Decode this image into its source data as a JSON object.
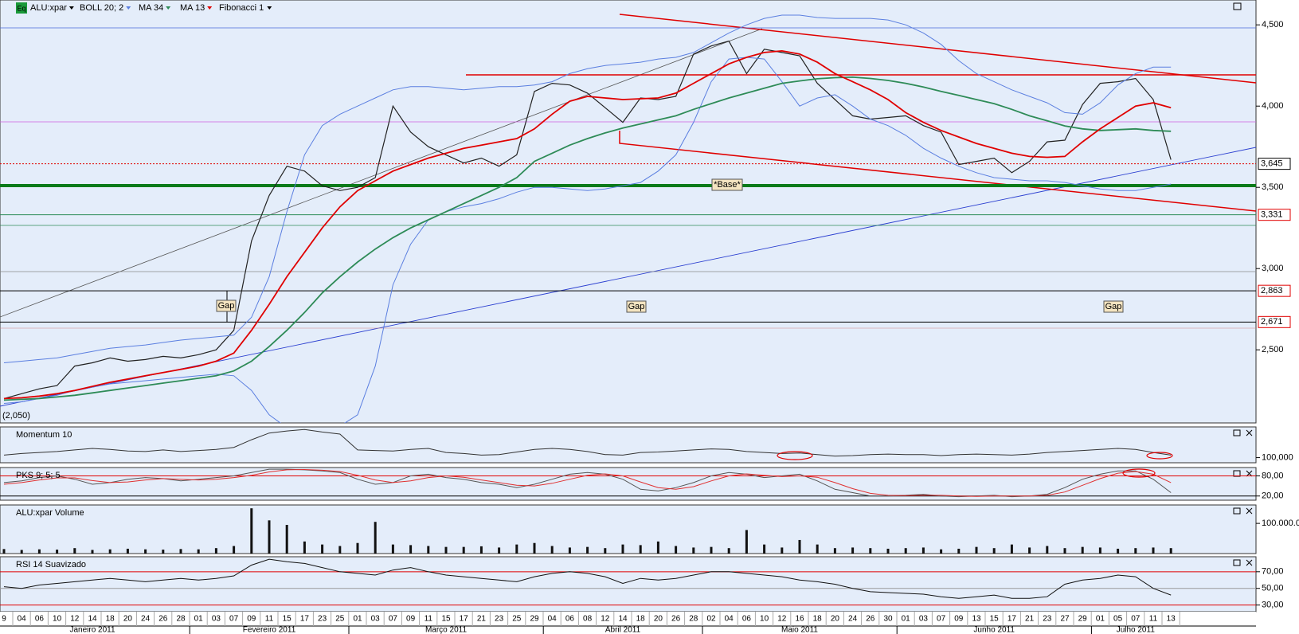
{
  "chart_data": [
    {
      "type": "line",
      "icon": "Eq",
      "categories": [
        "9",
        "04",
        "06",
        "10",
        "12",
        "14",
        "18",
        "20",
        "24",
        "26",
        "28",
        "01",
        "03",
        "07",
        "09",
        "11",
        "15",
        "17",
        "23",
        "25",
        "01",
        "03",
        "07",
        "09",
        "11",
        "15",
        "17",
        "21",
        "23",
        "25",
        "29",
        "04",
        "06",
        "08",
        "12",
        "14",
        "18",
        "20",
        "26",
        "28",
        "02",
        "04",
        "06",
        "10",
        "12",
        "16",
        "18",
        "20",
        "24",
        "26",
        "30",
        "01",
        "03",
        "07",
        "09",
        "13",
        "15",
        "17",
        "21",
        "23",
        "27",
        "29",
        "01",
        "05",
        "07",
        "11",
        "13"
      ],
      "months": [
        "Janeiro 2011",
        "Fevereiro 2011",
        "Março 2011",
        "Abril 2011",
        "Maio 2011",
        "Junho 2011",
        "Julho 2011"
      ],
      "series": [
        {
          "name": "ALU:xpar",
          "color": "#222222",
          "values": [
            2200,
            2230,
            2260,
            2280,
            2400,
            2420,
            2450,
            2430,
            2440,
            2460,
            2450,
            2470,
            2500,
            2620,
            3170,
            3450,
            3630,
            3600,
            3510,
            3480,
            3500,
            3560,
            4000,
            3840,
            3750,
            3700,
            3650,
            3680,
            3630,
            3700,
            4090,
            4140,
            4130,
            4080,
            3990,
            3900,
            4050,
            4040,
            4060,
            4320,
            4370,
            4400,
            4200,
            4350,
            4330,
            4310,
            4140,
            4040,
            3940,
            3920,
            3930,
            3940,
            3880,
            3840,
            3640,
            3660,
            3680,
            3590,
            3660,
            3780,
            3790,
            4010,
            4140,
            4150,
            4170,
            4040,
            3670
          ]
        },
        {
          "name": "BOLL 20; 2",
          "color": "#5b7fe0",
          "values": [
            2420,
            2430,
            2440,
            2450,
            2470,
            2490,
            2510,
            2520,
            2530,
            2545,
            2560,
            2570,
            2580,
            2590,
            2700,
            2950,
            3350,
            3700,
            3880,
            3950,
            4000,
            4050,
            4100,
            4120,
            4120,
            4110,
            4100,
            4110,
            4120,
            4120,
            4130,
            4150,
            4200,
            4230,
            4250,
            4260,
            4270,
            4290,
            4300,
            4330,
            4390,
            4450,
            4500,
            4540,
            4560,
            4560,
            4545,
            4540,
            4540,
            4540,
            4530,
            4500,
            4450,
            4380,
            4280,
            4200,
            4150,
            4100,
            4060,
            4020,
            3960,
            3950,
            4020,
            4130,
            4200,
            4240,
            4240
          ],
          "lower": [
            2170,
            2180,
            2200,
            2220,
            2250,
            2270,
            2290,
            2300,
            2310,
            2320,
            2330,
            2340,
            2350,
            2340,
            2250,
            2100,
            2020,
            1980,
            2000,
            2030,
            2100,
            2400,
            2900,
            3150,
            3300,
            3350,
            3380,
            3400,
            3430,
            3470,
            3500,
            3500,
            3490,
            3480,
            3490,
            3510,
            3530,
            3600,
            3700,
            3900,
            4150,
            4290,
            4300,
            4290,
            4150,
            4000,
            4050,
            4070,
            4000,
            3920,
            3880,
            3820,
            3740,
            3680,
            3630,
            3590,
            3560,
            3550,
            3540,
            3540,
            3530,
            3510,
            3490,
            3480,
            3480,
            3500,
            3520
          ]
        },
        {
          "name": "MA 34",
          "color": "#2e8b57",
          "values": [
            2190,
            2195,
            2200,
            2210,
            2220,
            2235,
            2250,
            2265,
            2280,
            2295,
            2310,
            2325,
            2340,
            2370,
            2430,
            2520,
            2620,
            2730,
            2850,
            2950,
            3040,
            3120,
            3190,
            3250,
            3300,
            3350,
            3400,
            3450,
            3500,
            3560,
            3660,
            3710,
            3760,
            3800,
            3835,
            3865,
            3890,
            3915,
            3940,
            3980,
            4015,
            4050,
            4080,
            4110,
            4140,
            4155,
            4168,
            4175,
            4178,
            4170,
            4158,
            4140,
            4117,
            4090,
            4066,
            4040,
            4015,
            3980,
            3940,
            3910,
            3878,
            3860,
            3850,
            3855,
            3860,
            3850,
            3845
          ]
        },
        {
          "name": "MA 13",
          "color": "#e00000",
          "values": [
            2200,
            2205,
            2215,
            2230,
            2250,
            2275,
            2300,
            2320,
            2340,
            2360,
            2380,
            2400,
            2430,
            2480,
            2620,
            2780,
            2950,
            3100,
            3250,
            3380,
            3480,
            3540,
            3600,
            3640,
            3680,
            3710,
            3740,
            3760,
            3780,
            3800,
            3860,
            3950,
            4030,
            4060,
            4050,
            4040,
            4045,
            4050,
            4080,
            4140,
            4200,
            4260,
            4300,
            4330,
            4340,
            4320,
            4270,
            4200,
            4150,
            4100,
            4040,
            3960,
            3900,
            3850,
            3810,
            3770,
            3740,
            3710,
            3690,
            3685,
            3690,
            3780,
            3860,
            3930,
            4000,
            4020,
            3990
          ]
        }
      ],
      "levels_name": "Fibonacci 1",
      "levels": [
        {
          "value": 3645,
          "label": "3,645",
          "color": "#e00000"
        },
        {
          "value": 3331,
          "label": "3,331",
          "color": "#2e8b57"
        },
        {
          "value": 2863,
          "label": "2,863",
          "color": "#000000"
        },
        {
          "value": 2671,
          "label": "2,671",
          "color": "#000000"
        }
      ],
      "low_label": "(2,050)",
      "annotations": [
        "Gap",
        "Gap",
        "Gap",
        "*Base*"
      ],
      "ylim": [
        2050,
        4653
      ],
      "yticks": [
        {
          "value": 2500,
          "label": "2,500"
        },
        {
          "value": 3000,
          "label": "3,000"
        },
        {
          "value": 3500,
          "label": "3,500"
        },
        {
          "value": 4000,
          "label": "4,000"
        },
        {
          "value": 4500,
          "label": "4,500"
        }
      ],
      "grid": false
    },
    {
      "type": "line",
      "title": "Momentum 10",
      "series": [
        {
          "color": "#333333",
          "values": [
            100.5,
            100.8,
            101,
            101.2,
            101.5,
            101.8,
            101.6,
            101.3,
            101.2,
            101.5,
            101.2,
            101.4,
            101.6,
            102,
            103.5,
            104.8,
            105.2,
            105.5,
            105,
            104.6,
            101.5,
            101.4,
            101.3,
            101.6,
            101.8,
            101,
            100.8,
            100.5,
            100.6,
            101.1,
            101.6,
            101.8,
            101.6,
            101.2,
            100.6,
            100.5,
            101,
            101.1,
            101.3,
            101.5,
            101.7,
            101.6,
            101.2,
            101,
            100.8,
            100.9,
            100.6,
            100.3,
            100.4,
            100.6,
            100.7,
            100.6,
            100.6,
            100.4,
            100.6,
            100.7,
            100.6,
            100.5,
            100.7,
            101,
            101.2,
            101.4,
            101.6,
            101.8,
            101.6,
            101,
            100.5
          ]
        }
      ],
      "ylim": [
        99,
        106
      ],
      "yticks": [
        {
          "value": 100,
          "label": "100,000"
        }
      ],
      "grid": false
    },
    {
      "type": "line",
      "title": "PKS 9; 5; 5",
      "series": [
        {
          "color": "#555555",
          "values": [
            60,
            65,
            75,
            80,
            70,
            55,
            60,
            70,
            75,
            72,
            65,
            70,
            75,
            80,
            90,
            100,
            100,
            98,
            95,
            90,
            70,
            55,
            60,
            80,
            85,
            75,
            70,
            60,
            55,
            45,
            55,
            70,
            85,
            90,
            85,
            70,
            40,
            35,
            45,
            60,
            80,
            90,
            85,
            75,
            80,
            85,
            65,
            40,
            30,
            20,
            20,
            22,
            25,
            20,
            18,
            20,
            22,
            18,
            20,
            25,
            45,
            70,
            85,
            95,
            95,
            70,
            30
          ]
        },
        {
          "color": "#e03030",
          "values": [
            55,
            60,
            68,
            74,
            74,
            66,
            60,
            62,
            68,
            72,
            70,
            68,
            70,
            75,
            82,
            92,
            98,
            99,
            97,
            93,
            82,
            68,
            60,
            65,
            75,
            80,
            76,
            68,
            60,
            52,
            50,
            58,
            70,
            82,
            86,
            80,
            62,
            45,
            40,
            48,
            65,
            80,
            86,
            82,
            78,
            80,
            76,
            60,
            42,
            28,
            22,
            21,
            22,
            22,
            20,
            19,
            20,
            20,
            20,
            22,
            32,
            52,
            72,
            88,
            93,
            85,
            60
          ]
        }
      ],
      "ylim": [
        7.5,
        105
      ],
      "yticks": [
        {
          "value": 80,
          "label": "80,00"
        },
        {
          "value": 20,
          "label": "20,00"
        }
      ],
      "grid": true,
      "grid_colors": [
        "#e00000",
        "#000000"
      ]
    },
    {
      "type": "bar",
      "title": "ALU:xpar Volume",
      "series": [
        {
          "color": "#111111",
          "values": [
            15000000,
            12000000,
            14000000,
            13000000,
            18000000,
            12000000,
            14000000,
            16000000,
            14000000,
            13000000,
            15000000,
            14000000,
            18000000,
            25000000,
            150000000,
            110000000,
            95000000,
            40000000,
            30000000,
            25000000,
            35000000,
            105000000,
            30000000,
            28000000,
            25000000,
            22000000,
            22000000,
            24000000,
            20000000,
            30000000,
            35000000,
            25000000,
            20000000,
            22000000,
            18000000,
            30000000,
            28000000,
            40000000,
            25000000,
            20000000,
            22000000,
            18000000,
            78000000,
            30000000,
            20000000,
            45000000,
            30000000,
            18000000,
            20000000,
            18000000,
            16000000,
            18000000,
            20000000,
            14000000,
            16000000,
            22000000,
            18000000,
            30000000,
            20000000,
            25000000,
            18000000,
            22000000,
            20000000,
            16000000,
            18000000,
            20000000,
            18000000
          ]
        }
      ],
      "ylim": [
        0,
        161000000
      ],
      "yticks": [
        {
          "value": 100000000,
          "label": "100.000.0"
        }
      ],
      "grid": false
    },
    {
      "type": "line",
      "title": "RSI 14 Suavizado",
      "series": [
        {
          "color": "#111111",
          "values": [
            52,
            50,
            54,
            56,
            58,
            60,
            62,
            60,
            58,
            60,
            62,
            60,
            62,
            65,
            78,
            85,
            82,
            80,
            75,
            70,
            68,
            66,
            72,
            75,
            70,
            66,
            64,
            62,
            60,
            58,
            64,
            68,
            70,
            68,
            64,
            56,
            62,
            60,
            62,
            66,
            70,
            70,
            68,
            66,
            64,
            60,
            58,
            55,
            50,
            46,
            45,
            44,
            43,
            40,
            38,
            40,
            42,
            38,
            38,
            40,
            55,
            60,
            62,
            66,
            64,
            50,
            42
          ]
        }
      ],
      "ylim": [
        22,
        88
      ],
      "yticks": [
        {
          "value": 70,
          "label": "70,00"
        },
        {
          "value": 50,
          "label": "50,00"
        },
        {
          "value": 30,
          "label": "30,00"
        }
      ],
      "grid": true,
      "grid_colors": [
        "#e00000",
        "#999999",
        "#e00000"
      ]
    }
  ]
}
